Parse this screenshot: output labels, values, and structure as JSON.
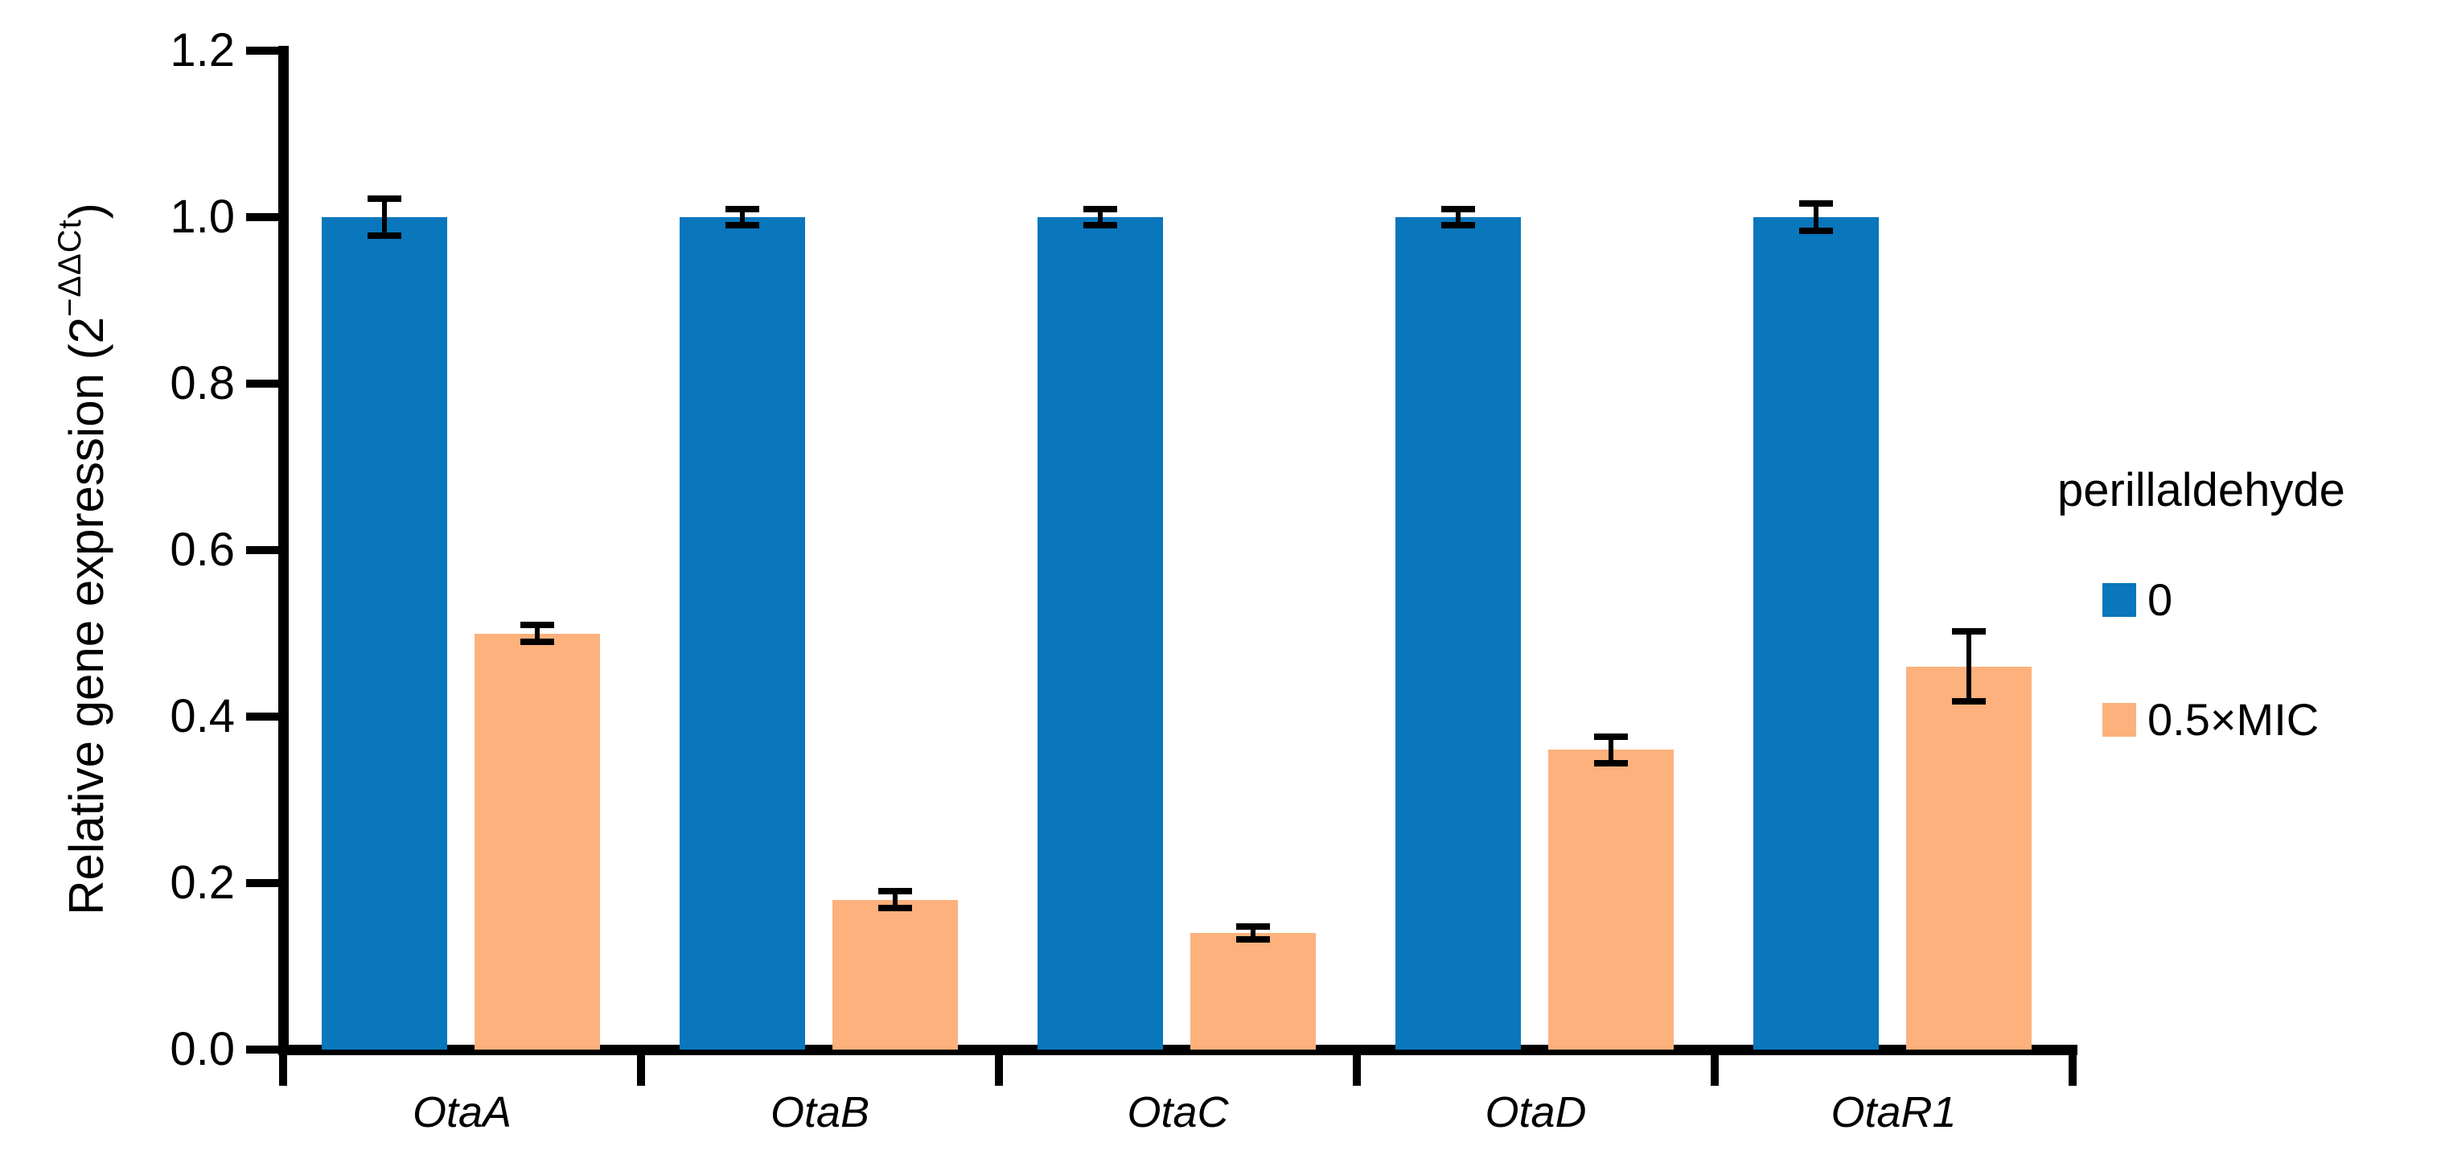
{
  "chart_data": {
    "type": "bar",
    "title": "",
    "categories": [
      "OtaA",
      "OtaB",
      "OtaC",
      "OtaD",
      "OtaR1"
    ],
    "series": [
      {
        "name": "0",
        "color": "#0a76bc",
        "values": [
          1.0,
          1.0,
          1.0,
          1.0,
          1.0
        ],
        "errors": [
          0.022,
          0.01,
          0.01,
          0.01,
          0.016
        ]
      },
      {
        "name": "0.5×MIC",
        "color": "#fdb17c",
        "values": [
          0.5,
          0.18,
          0.14,
          0.36,
          0.46
        ],
        "errors": [
          0.01,
          0.01,
          0.008,
          0.016,
          0.042
        ]
      }
    ],
    "ylabel_prefix": "Relative gene expression (2",
    "ylabel_sup": "−ΔΔCt",
    "ylabel_suffix": ")",
    "xlabel": "",
    "yticks": [
      "0.0",
      "0.2",
      "0.4",
      "0.6",
      "0.8",
      "1.0",
      "1.2"
    ],
    "ylim": [
      0,
      1.2
    ],
    "grid": false,
    "error_bar_color": "#000000",
    "axis_color": "#000000",
    "legend_position": "right",
    "legend_title": "perillaldehyde"
  }
}
